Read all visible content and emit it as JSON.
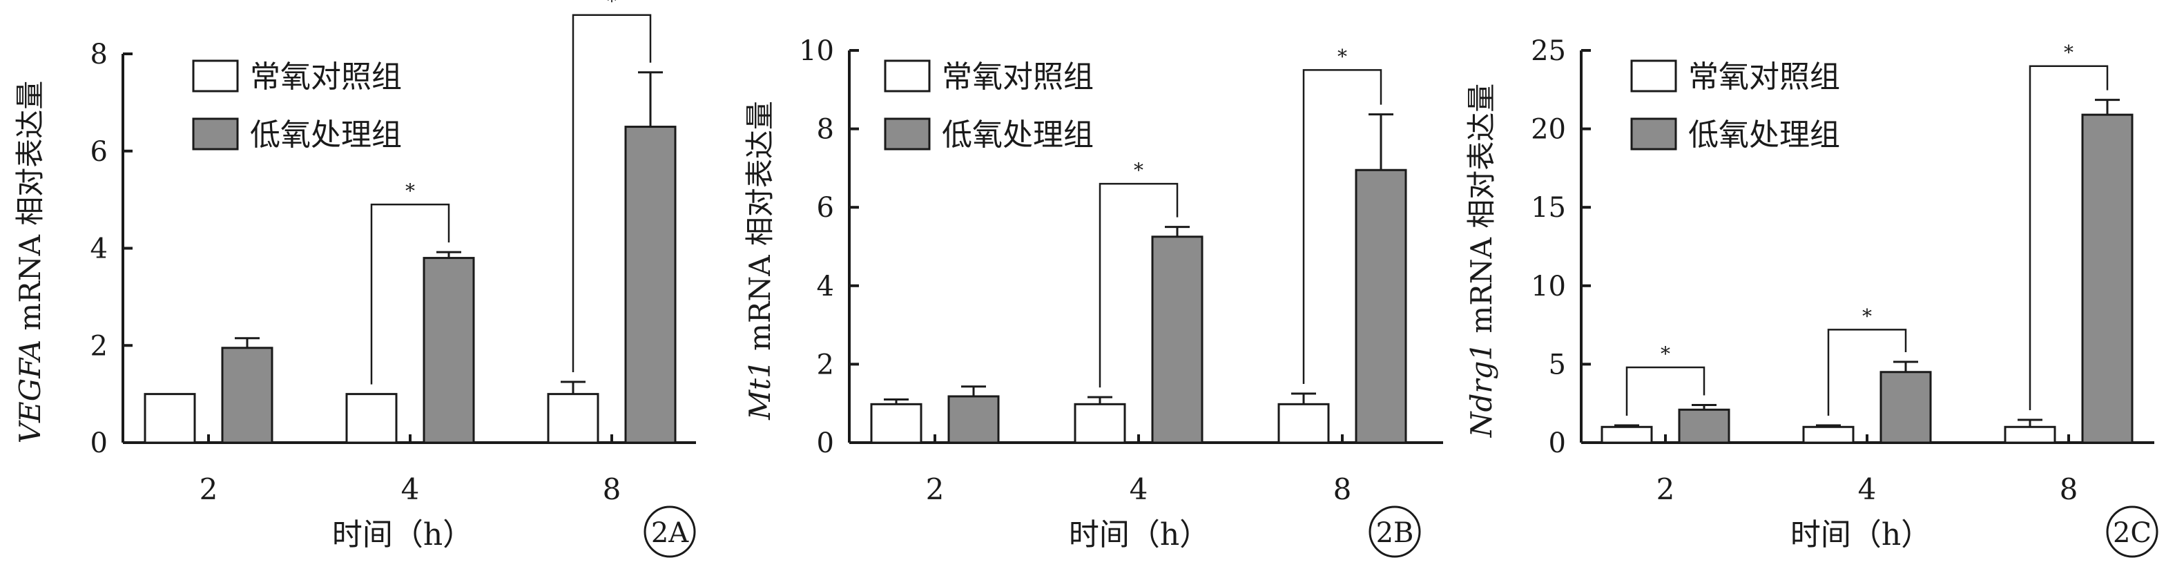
{
  "chart_data": [
    {
      "type": "bar",
      "panel_label": "2A",
      "ylabel_italic": "VEGFA",
      "ylabel_rest": " mRNA 相对表达量",
      "xlabel": "时间（h）",
      "categories": [
        "2",
        "4",
        "8"
      ],
      "ylim": [
        0,
        8
      ],
      "yticks": [
        0,
        2,
        4,
        6,
        8
      ],
      "legend_position": "top-left",
      "series": [
        {
          "name": "常氧对照组",
          "color": "#ffffff",
          "values": [
            1.0,
            1.0,
            1.0
          ],
          "errors": [
            0,
            0,
            0.25
          ]
        },
        {
          "name": "低氧处理组",
          "color": "#8c8c8c",
          "values": [
            1.95,
            3.8,
            6.5
          ],
          "errors": [
            0.2,
            0.12,
            1.12
          ]
        }
      ],
      "significance": [
        {
          "category": 1,
          "label": "*",
          "level": 4.9
        },
        {
          "category": 2,
          "label": "*",
          "level": 8.8
        }
      ]
    },
    {
      "type": "bar",
      "panel_label": "2B",
      "ylabel_italic": "Mt1",
      "ylabel_rest": " mRNA 相对表达量",
      "xlabel": "时间（h）",
      "categories": [
        "2",
        "4",
        "8"
      ],
      "ylim": [
        0,
        10
      ],
      "yticks": [
        0,
        2,
        4,
        6,
        8,
        10
      ],
      "legend_position": "top-left",
      "series": [
        {
          "name": "常氧对照组",
          "color": "#ffffff",
          "values": [
            0.98,
            0.98,
            0.98
          ],
          "errors": [
            0.12,
            0.18,
            0.27
          ]
        },
        {
          "name": "低氧处理组",
          "color": "#8c8c8c",
          "values": [
            1.18,
            5.25,
            6.95
          ],
          "errors": [
            0.25,
            0.25,
            1.42
          ]
        }
      ],
      "significance": [
        {
          "category": 1,
          "label": "*",
          "level": 6.6
        },
        {
          "category": 2,
          "label": "*",
          "level": 9.5
        }
      ]
    },
    {
      "type": "bar",
      "panel_label": "2C",
      "ylabel_italic": "Ndrg1",
      "ylabel_rest": " mRNA 相对表达量",
      "xlabel": "时间（h）",
      "categories": [
        "2",
        "4",
        "8"
      ],
      "ylim": [
        0,
        25
      ],
      "yticks": [
        0,
        5,
        10,
        15,
        20,
        25
      ],
      "legend_position": "top-left",
      "series": [
        {
          "name": "常氧对照组",
          "color": "#ffffff",
          "values": [
            1.0,
            1.0,
            1.0
          ],
          "errors": [
            0.1,
            0.1,
            0.45
          ]
        },
        {
          "name": "低氧处理组",
          "color": "#8c8c8c",
          "values": [
            2.1,
            4.5,
            20.9
          ],
          "errors": [
            0.3,
            0.65,
            0.95
          ]
        }
      ],
      "significance": [
        {
          "category": 0,
          "label": "*",
          "level": 4.8
        },
        {
          "category": 1,
          "label": "*",
          "level": 7.2
        },
        {
          "category": 2,
          "label": "*",
          "level": 24.0
        }
      ]
    }
  ]
}
